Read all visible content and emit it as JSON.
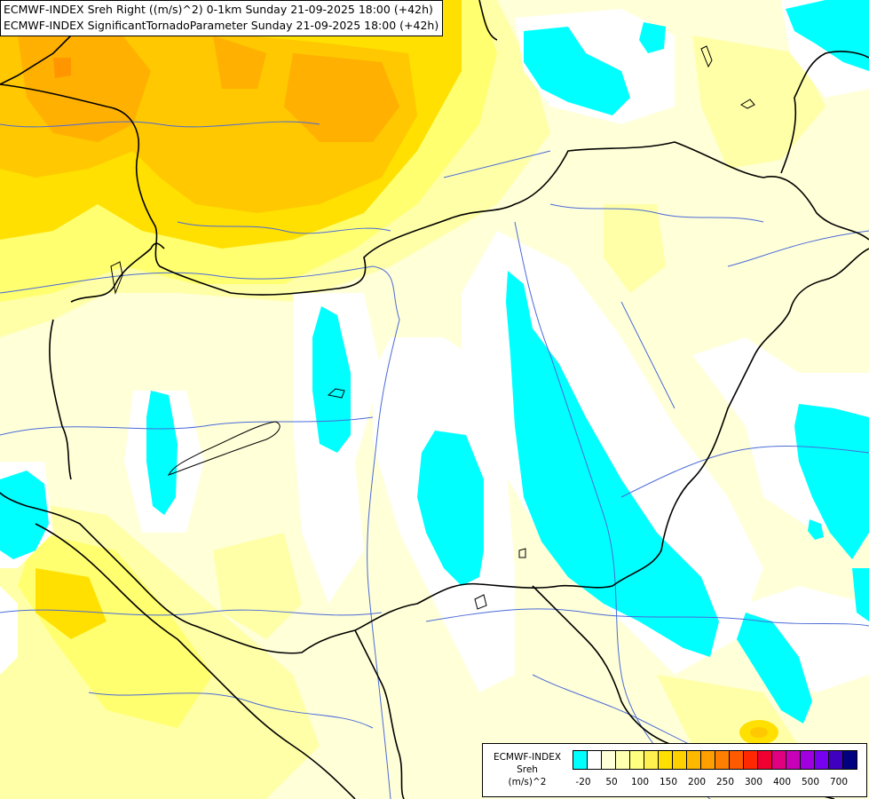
{
  "header": {
    "line1": "ECMWF-INDEX Sreh Right ((m/s)^2) 0-1km Sunday 21-09-2025 18:00 (+42h)",
    "line2": "ECMWF-INDEX SignificantTornadoParameter Sunday 21-09-2025 18:00 (+42h)"
  },
  "legend": {
    "title_line1": "ECMWF-INDEX",
    "title_line2": "Sreh",
    "title_line3": "(m/s)^2",
    "colors": [
      "#00ffff",
      "#ffffff",
      "#ffffd8",
      "#ffffb0",
      "#ffff80",
      "#fff050",
      "#ffe000",
      "#ffd000",
      "#ffb800",
      "#ffa000",
      "#ff8000",
      "#ff5a00",
      "#ff2800",
      "#f00030",
      "#e00080",
      "#c800b8",
      "#a000e0",
      "#7800f0",
      "#4000c0",
      "#000080"
    ],
    "ticks": [
      {
        "label": "-20",
        "index": 1
      },
      {
        "label": "50",
        "index": 2
      },
      {
        "label": "100",
        "index": 3
      },
      {
        "label": "150",
        "index": 4
      },
      {
        "label": "200",
        "index": 5
      },
      {
        "label": "250",
        "index": 6
      },
      {
        "label": "300",
        "index": 7
      },
      {
        "label": "400",
        "index": 8
      },
      {
        "label": "500",
        "index": 9
      },
      {
        "label": "700",
        "index": 10
      }
    ]
  }
}
